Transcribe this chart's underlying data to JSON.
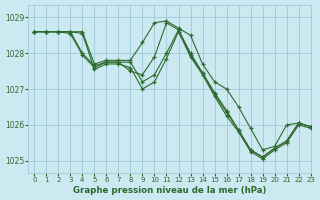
{
  "background_color": "#cce8f0",
  "grid_color": "#9ec8d8",
  "line_color": "#2d6a2d",
  "title": "Graphe pression niveau de la mer (hPa)",
  "xlim": [
    -0.5,
    23
  ],
  "ylim": [
    1024.65,
    1029.35
  ],
  "yticks": [
    1025,
    1026,
    1027,
    1028,
    1029
  ],
  "xticks": [
    0,
    1,
    2,
    3,
    4,
    5,
    6,
    7,
    8,
    9,
    10,
    11,
    12,
    13,
    14,
    15,
    16,
    17,
    18,
    19,
    20,
    21,
    22,
    23
  ],
  "series": [
    {
      "x": [
        0,
        1,
        2,
        3,
        4,
        5,
        6,
        7,
        8,
        9,
        10,
        11,
        12,
        13,
        14,
        15,
        16,
        17,
        18,
        19,
        20,
        21,
        22,
        23
      ],
      "y": [
        1028.6,
        1028.6,
        1028.6,
        1028.6,
        1028.6,
        1027.7,
        1027.8,
        1027.8,
        1027.8,
        1028.3,
        1028.85,
        1028.9,
        1028.7,
        1028.5,
        1027.7,
        1027.2,
        1027.0,
        1026.5,
        1025.9,
        1025.3,
        1025.4,
        1026.0,
        1026.05,
        1025.95
      ]
    },
    {
      "x": [
        0,
        1,
        2,
        3,
        4,
        5,
        6,
        7,
        8,
        9,
        10,
        11,
        12,
        13,
        14,
        15,
        16,
        17,
        18,
        19,
        20,
        21,
        22,
        23
      ],
      "y": [
        1028.6,
        1028.6,
        1028.6,
        1028.6,
        1028.0,
        1027.65,
        1027.75,
        1027.75,
        1027.5,
        1027.4,
        1027.9,
        1028.85,
        1028.65,
        1028.0,
        1027.45,
        1026.9,
        1026.4,
        1025.85,
        1025.3,
        1025.1,
        1025.35,
        1025.55,
        1026.05,
        1025.95
      ]
    },
    {
      "x": [
        0,
        1,
        2,
        3,
        4,
        5,
        6,
        7,
        8,
        9,
        10,
        11,
        12,
        13,
        14,
        15,
        16,
        17,
        18,
        19,
        20,
        21,
        22,
        23
      ],
      "y": [
        1028.6,
        1028.6,
        1028.6,
        1028.55,
        1027.95,
        1027.6,
        1027.75,
        1027.75,
        1027.75,
        1027.2,
        1027.4,
        1028.0,
        1028.65,
        1027.95,
        1027.45,
        1026.85,
        1026.35,
        1025.85,
        1025.3,
        1025.1,
        1025.35,
        1025.55,
        1026.05,
        1025.95
      ]
    },
    {
      "x": [
        0,
        1,
        2,
        3,
        4,
        5,
        6,
        7,
        8,
        9,
        10,
        11,
        12,
        13,
        14,
        15,
        16,
        17,
        18,
        19,
        20,
        21,
        22,
        23
      ],
      "y": [
        1028.6,
        1028.6,
        1028.6,
        1028.6,
        1028.55,
        1027.55,
        1027.7,
        1027.7,
        1027.6,
        1027.0,
        1027.2,
        1027.85,
        1028.6,
        1027.9,
        1027.4,
        1026.8,
        1026.25,
        1025.8,
        1025.25,
        1025.05,
        1025.3,
        1025.5,
        1026.0,
        1025.9
      ]
    }
  ]
}
